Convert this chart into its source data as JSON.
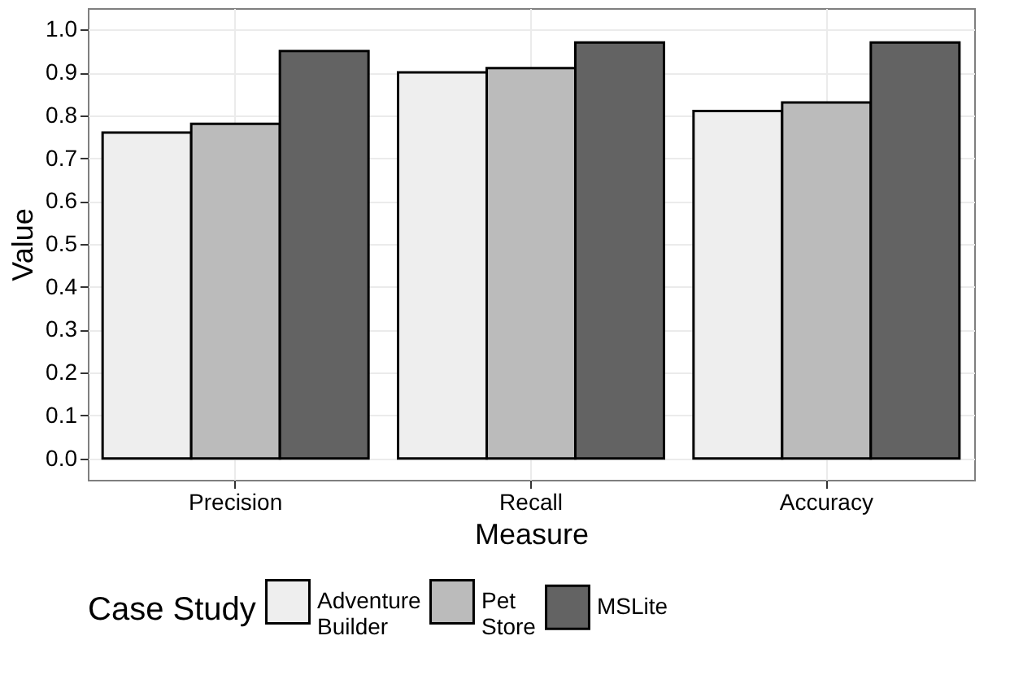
{
  "chart_data": {
    "type": "bar",
    "xlabel": "Measure",
    "ylabel": "Value",
    "legend_title": "Case Study",
    "categories": [
      "Precision",
      "Recall",
      "Accuracy"
    ],
    "series": [
      {
        "name": "Adventure Builder",
        "color": "#eeeeee",
        "values": [
          0.76,
          0.9,
          0.81
        ]
      },
      {
        "name": "Pet Store",
        "color": "#bbbbbb",
        "values": [
          0.78,
          0.91,
          0.83
        ]
      },
      {
        "name": "MSLite",
        "color": "#636363",
        "values": [
          0.95,
          0.97,
          0.97
        ]
      }
    ],
    "ylim": [
      -0.05,
      1.05
    ],
    "yticks": [
      {
        "value": 0,
        "label": "0.0"
      },
      0.1,
      0.2,
      0.3,
      0.4,
      0.5,
      0.6,
      0.7,
      0.8,
      0.9,
      {
        "value": 1,
        "label": "1.0"
      }
    ],
    "grid": true,
    "legend": "bottom"
  }
}
